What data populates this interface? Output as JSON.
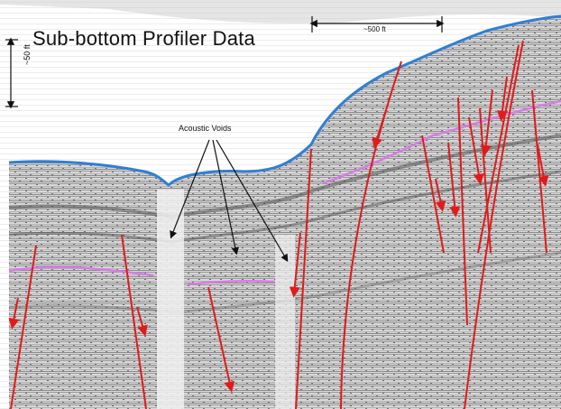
{
  "figure": {
    "title": "Sub-bottom Profiler Data",
    "vertical_scale_label": "~50 ft",
    "horizontal_scale_label": "~500 ft",
    "annotation_label": "Acoustic Voids"
  },
  "colors": {
    "seafloor_trace": "#2f7fd6",
    "horizon_trace": "#d77be6",
    "fault_lines": "#e11b1b",
    "background": "#ffffff"
  }
}
